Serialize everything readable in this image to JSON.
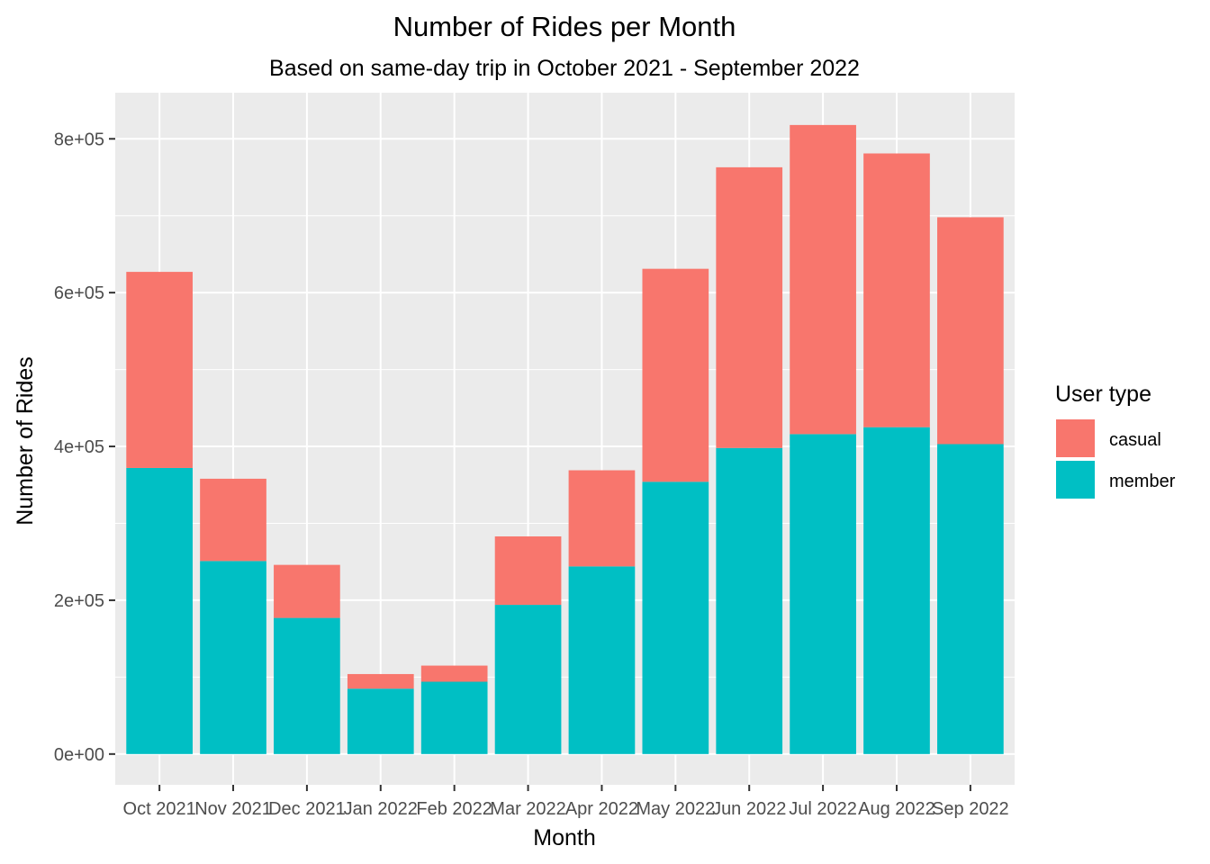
{
  "chart_data": {
    "type": "bar",
    "stacked": true,
    "title": "Number of Rides per Month",
    "subtitle": "Based on same-day trip in October 2021 - September 2022",
    "xlabel": "Month",
    "ylabel": "Number of Rides",
    "categories": [
      "Oct 2021",
      "Nov 2021",
      "Dec 2021",
      "Jan 2022",
      "Feb 2022",
      "Mar 2022",
      "Apr 2022",
      "May 2022",
      "Jun 2022",
      "Jul 2022",
      "Aug 2022",
      "Sep 2022"
    ],
    "series": [
      {
        "name": "member",
        "color": "#00BFC4",
        "values": [
          372000,
          251000,
          177000,
          85000,
          94000,
          194000,
          244000,
          354000,
          398000,
          416000,
          425000,
          403000
        ]
      },
      {
        "name": "casual",
        "color": "#F8766D",
        "values": [
          255000,
          107000,
          69000,
          19000,
          21000,
          89000,
          125000,
          277000,
          365000,
          402000,
          356000,
          295000
        ]
      }
    ],
    "ylim": [
      -40000,
      860000
    ],
    "yticks": [
      0,
      200000,
      400000,
      600000,
      800000
    ],
    "ytick_labels": [
      "0e+00",
      "2e+05",
      "4e+05",
      "6e+05",
      "8e+05"
    ],
    "grid": true,
    "panel_background": "#EBEBEB",
    "legend": {
      "title": "User type",
      "position": "right",
      "entries": [
        {
          "label": "casual",
          "color": "#F8766D"
        },
        {
          "label": "member",
          "color": "#00BFC4"
        }
      ]
    }
  }
}
